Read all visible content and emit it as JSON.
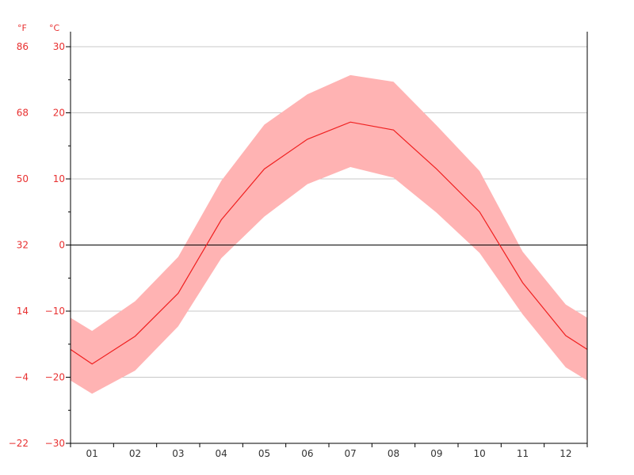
{
  "colors": {
    "line": "#f02020",
    "band": "#ffb3b3",
    "axis_label": "#e83030",
    "grid": "#c8c8c8",
    "zero_line": "#000000"
  },
  "chart_data": {
    "type": "area",
    "title": "",
    "xlabel": "",
    "ylabel": "",
    "categories": [
      "01",
      "02",
      "03",
      "04",
      "05",
      "06",
      "07",
      "08",
      "09",
      "10",
      "11",
      "12"
    ],
    "grid": true,
    "ylim": [
      -30,
      30
    ],
    "units": {
      "left": "°F",
      "right": "°C"
    },
    "fahrenheit_ticks": [
      "86",
      "68",
      "50",
      "32",
      "14",
      "−4",
      "−22"
    ],
    "celsius_ticks": [
      "30",
      "20",
      "10",
      "0",
      "−10",
      "−20",
      "−30"
    ],
    "celsius_tick_values": [
      30,
      20,
      10,
      0,
      -10,
      -20,
      -30
    ],
    "series": [
      {
        "values": [
          -18,
          -13.8,
          -7.3,
          3.8,
          11.5,
          16,
          18.6,
          17.4,
          11.5,
          5,
          -5.7,
          -13.7
        ]
      },
      {
        "values": [
          -13,
          -8.5,
          -1.8,
          9.7,
          18.2,
          22.8,
          25.7,
          24.7,
          18.1,
          11.2,
          -1,
          -9
        ]
      },
      {
        "values": [
          -22.5,
          -19,
          -12.3,
          -2,
          4.3,
          9.2,
          11.8,
          10.2,
          4.9,
          -1.2,
          -10.5,
          -18.5
        ]
      }
    ],
    "edge_values": {
      "left": {
        "mean": -15.8,
        "high": -11,
        "low": -20.5
      },
      "right": {
        "mean": -15.8,
        "high": -11,
        "low": -20.5
      }
    }
  }
}
